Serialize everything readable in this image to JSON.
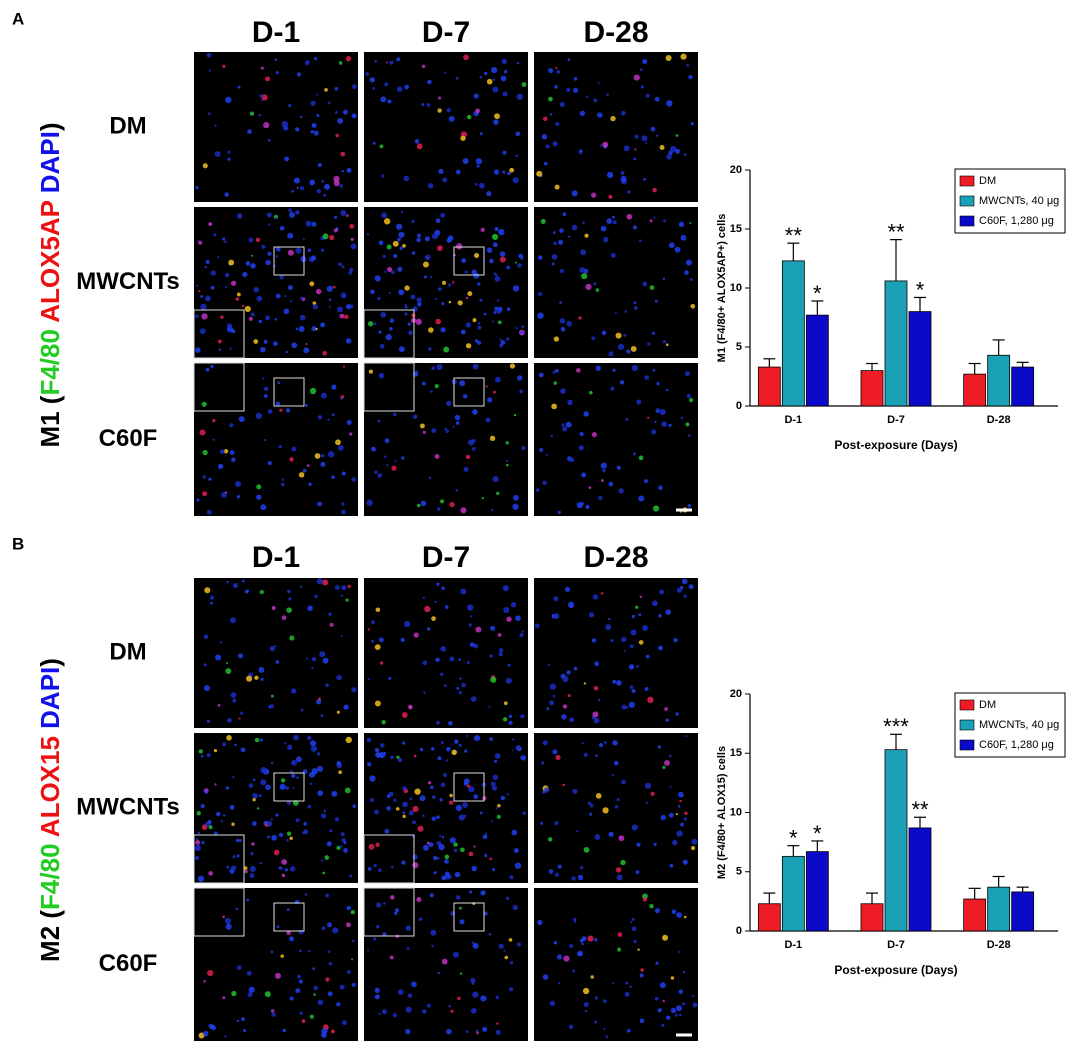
{
  "panels": [
    {
      "label": "A",
      "columns": [
        "D-1",
        "D-7",
        "D-28"
      ],
      "rows": [
        "DM",
        "MWCNTs",
        "C60F"
      ],
      "stain_label": [
        {
          "text": "M1 (",
          "color": "#000000"
        },
        {
          "text": "F4/80",
          "color": "#22cc22"
        },
        {
          "text": " ALOX5AP",
          "color": "#ee1111"
        },
        {
          "text": " DAPI",
          "color": "#1111ee"
        },
        {
          "text": ")",
          "color": "#000000"
        }
      ]
    },
    {
      "label": "B",
      "columns": [
        "D-1",
        "D-7",
        "D-28"
      ],
      "rows": [
        "DM",
        "MWCNTs",
        "C60F"
      ],
      "stain_label": [
        {
          "text": "M2 (",
          "color": "#000000"
        },
        {
          "text": "F4/80",
          "color": "#22cc22"
        },
        {
          "text": " ALOX15",
          "color": "#ee1111"
        },
        {
          "text": " DAPI",
          "color": "#1111ee"
        },
        {
          "text": ")",
          "color": "#000000"
        }
      ]
    }
  ],
  "chart_data": [
    {
      "type": "bar",
      "y_label": "M1 (F4/80+ ALOX5AP+) cells",
      "x_label": "Post-exposure (Days)",
      "categories": [
        "D-1",
        "D-7",
        "D-28"
      ],
      "ylim": [
        0,
        20
      ],
      "yticks": [
        0,
        5,
        10,
        15,
        20
      ],
      "legend": "upper right",
      "series": [
        {
          "name": "DM",
          "color": "#ee1c24",
          "values": [
            3.3,
            3.0,
            2.7
          ],
          "errors": [
            0.7,
            0.6,
            0.9
          ],
          "significance": [
            null,
            null,
            null
          ]
        },
        {
          "name": "MWCNTs, 40 μg",
          "color": "#1ba1b5",
          "values": [
            12.3,
            10.6,
            4.3
          ],
          "errors": [
            1.5,
            3.5,
            1.3
          ],
          "significance": [
            "**",
            "**",
            null
          ]
        },
        {
          "name": "C60F, 1,280 μg",
          "color": "#0a0ac8",
          "values": [
            7.7,
            8.0,
            3.3
          ],
          "errors": [
            1.2,
            1.2,
            0.4
          ],
          "significance": [
            "*",
            "*",
            null
          ]
        }
      ]
    },
    {
      "type": "bar",
      "y_label": "M2 (F4/80+ ALOX15) cells",
      "x_label": "Post-exposure (Days)",
      "categories": [
        "D-1",
        "D-7",
        "D-28"
      ],
      "ylim": [
        0,
        20
      ],
      "yticks": [
        0,
        5,
        10,
        15,
        20
      ],
      "legend": "upper right",
      "series": [
        {
          "name": "DM",
          "color": "#ee1c24",
          "values": [
            2.3,
            2.3,
            2.7
          ],
          "errors": [
            0.9,
            0.9,
            0.9
          ],
          "significance": [
            null,
            null,
            null
          ]
        },
        {
          "name": "MWCNTs, 40 μg",
          "color": "#1ba1b5",
          "values": [
            6.3,
            15.3,
            3.7
          ],
          "errors": [
            0.9,
            1.3,
            0.9
          ],
          "significance": [
            "*",
            "***",
            null
          ]
        },
        {
          "name": "C60F, 1,280 μg",
          "color": "#0a0ac8",
          "values": [
            6.7,
            8.7,
            3.3
          ],
          "errors": [
            0.9,
            0.9,
            0.4
          ],
          "significance": [
            "*",
            "**",
            null
          ]
        }
      ]
    }
  ]
}
